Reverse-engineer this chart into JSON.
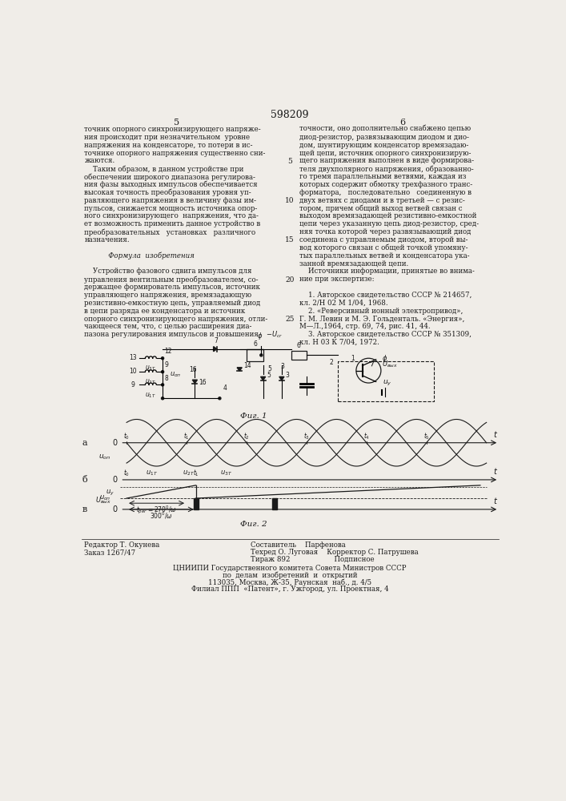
{
  "patent_number": "598209",
  "page_numbers": [
    "5",
    "6"
  ],
  "background_color": "#f0ede8",
  "text_color": "#1a1a1a",
  "col1_text": [
    "точник опорного синхронизирующего напряже-",
    "ния происходит при незначительном  уровне",
    "напряжения на конденсаторе, то потери в ис-",
    "точнике опорного напряжения существенно сни-",
    "жаются.",
    "    Таким образом, в данном устройстве при",
    "обеспечении широкого диапазона регулирова-",
    "ния фазы выходных импульсов обеспечивается",
    "высокая точность преобразования уровня уп-",
    "равляющего напряжения в величину фазы им-",
    "пульсов, снижается мощность источника опор-",
    "ного синхронизирующего  напряжения, что да-",
    "ет возможность применить данное устройство в",
    "преобразовательных   установках   различного",
    "назначения.",
    "",
    "           Формула  изобретения",
    "",
    "    Устройство фазового сдвига импульсов для",
    "управления вентильным преобразователем, со-",
    "держащее формирователь импульсов, источник",
    "управляющего напряжения, времязадающую",
    "резистивно-емкостную цепь, управляемый диод",
    "в цепи разряда ее конденсатора и источник",
    "опорного синхронизирующего напряжения, отли-",
    "чающееся тем, что, с целью расширения диа-",
    "пазона регулирования импульсов и повышения"
  ],
  "col2_text": [
    "точности, оно дополнительно снабжено цепью",
    "диод-резистор, развязывающим диодом и дио-",
    "дом, шунтирующим конденсатор времязадаю-",
    "щей цепи, источник опорного синхронизирую-",
    "щего напряжения выполнен в виде формирова-",
    "теля двухполярного напряжения, образованно-",
    "го тремя параллельными ветвями, каждая из",
    "которых содержит обмотку трехфазного транс-",
    "форматора,   последовательно   соединенную в",
    "двух ветвях с диодами и в третьей — с резис-",
    "тором, причем общий выход ветвей связан с",
    "выходом времязадающей резистивно-емкостной",
    "цепи через указанную цепь диод-резистор, сред-",
    "няя точка которой через развязывающий диод",
    "соединена с управляемым диодом, второй вы-",
    "вод которого связан с общей точкой упомяну-",
    "тых параллельных ветвей и конденсатора ука-",
    "занной времязадающей цепи.",
    "    Источники информации, принятые во внима-",
    "ние при экспертизе:",
    "",
    "    1. Авторское свидетельство СССР № 214657,",
    "кл. 2/Н 02 М 1/04, 1968.",
    "    2. «Реверсивный ионный электропривод»,",
    "Г. М. Левин и М. Э. Гольденталь. «Энергия»,",
    "М—Л.,1964, стр. 69, 74, рис. 41, 44.",
    "    3. Авторское свидетельство СССР № 351309,",
    "кл. Н 03 К 7/04, 1972."
  ],
  "line_numbers": [
    [
      5,
      5
    ],
    [
      10,
      10
    ],
    [
      15,
      15
    ],
    [
      20,
      20
    ],
    [
      25,
      25
    ]
  ],
  "footer_left": [
    "Редактор Т. Окунева",
    "Заказ 1267/47"
  ],
  "footer_mid_top": "Составитель    Парфенова",
  "footer_mid_mid": "Техред О. Луговая    Корректор С. Патрушева",
  "footer_mid_bot": "Тираж 892                    Подписное",
  "footer_center": [
    "ЦНИИПИ Государственного комитета Совета Министров СССР",
    "по  делам  изобретений  и  открытий",
    "113035, Москва, Ж-35, Раунская  наб., д. 4/5",
    "Филиал ППП  «Патент», г. Ужгород, ул. Проектная, 4"
  ]
}
